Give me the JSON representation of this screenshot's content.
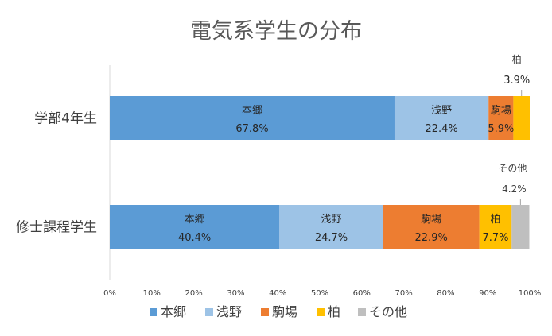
{
  "chart_data": {
    "type": "bar",
    "orientation": "horizontal",
    "stacked": "percent",
    "title": "電気系学生の分布",
    "categories": [
      "学部4年生",
      "修士課程学生"
    ],
    "series": [
      {
        "name": "本郷",
        "color": "#5b9bd5",
        "values": [
          67.8,
          40.4
        ],
        "labels": [
          "67.8%",
          "40.4%"
        ]
      },
      {
        "name": "浅野",
        "color": "#9dc3e6",
        "values": [
          22.4,
          24.7
        ],
        "labels": [
          "22.4%",
          "24.7%"
        ]
      },
      {
        "name": "駒場",
        "color": "#ed7d31",
        "values": [
          5.9,
          22.9
        ],
        "labels": [
          "5.9%",
          "22.9%"
        ]
      },
      {
        "name": "柏",
        "color": "#ffc000",
        "values": [
          3.9,
          7.7
        ],
        "labels": [
          "3.9%",
          "7.7%"
        ]
      },
      {
        "name": "その他",
        "color": "#bfbfbf",
        "values": [
          0,
          4.2
        ],
        "labels": [
          "",
          "4.2%"
        ]
      }
    ],
    "xlim": [
      0,
      100
    ],
    "xticks": [
      "0%",
      "10%",
      "20%",
      "30%",
      "40%",
      "50%",
      "60%",
      "70%",
      "80%",
      "90%",
      "100%"
    ],
    "legend_position": "bottom",
    "grid": false
  }
}
